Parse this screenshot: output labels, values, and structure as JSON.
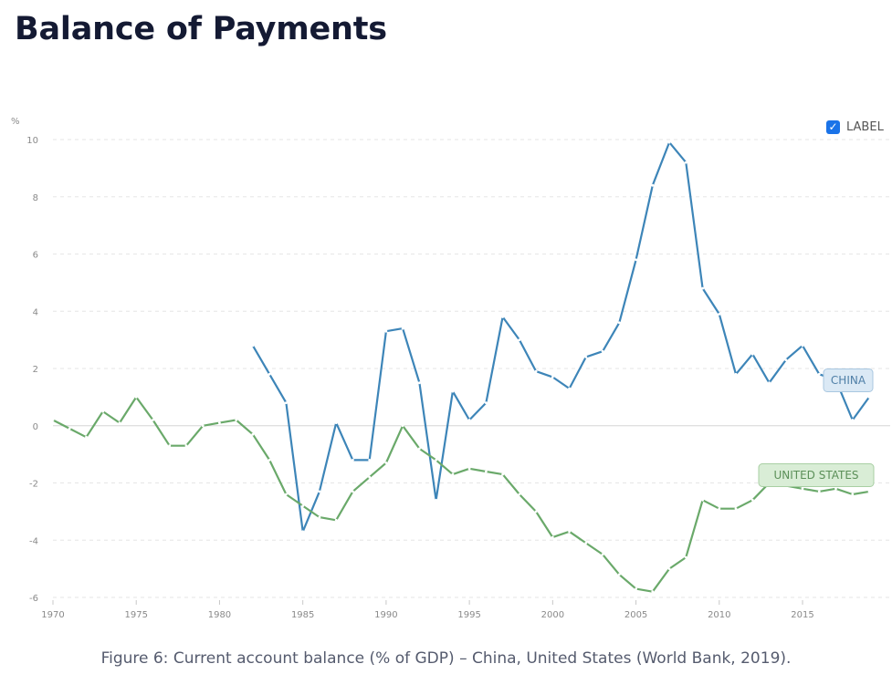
{
  "page": {
    "title": "Balance of Payments",
    "caption": "Figure 6: Current account balance (% of GDP) – China, United States (World Bank, 2019).",
    "label_toggle": {
      "label": "LABEL",
      "checked": true,
      "icon": "check-icon",
      "color": "#1a73e8"
    }
  },
  "chart_data": {
    "type": "line",
    "ylabel": "%",
    "xlim": [
      1970,
      2019
    ],
    "ylim": [
      -6,
      10
    ],
    "x_ticks": [
      1970,
      1975,
      1980,
      1985,
      1990,
      1995,
      2000,
      2005,
      2010,
      2015
    ],
    "y_ticks": [
      -6,
      -4,
      -2,
      0,
      2,
      4,
      6,
      8,
      10
    ],
    "grid": true,
    "series": [
      {
        "name": "CHINA",
        "color": "#3d85b8",
        "x": [
          1982,
          1983,
          1984,
          1985,
          1986,
          1987,
          1988,
          1989,
          1990,
          1991,
          1992,
          1993,
          1994,
          1995,
          1996,
          1997,
          1998,
          1999,
          2000,
          2001,
          2002,
          2003,
          2004,
          2005,
          2006,
          2007,
          2008,
          2009,
          2010,
          2011,
          2012,
          2013,
          2014,
          2015,
          2016,
          2017,
          2018,
          2019
        ],
        "y": [
          2.8,
          1.8,
          0.8,
          -3.7,
          -2.3,
          0.1,
          -1.2,
          -1.2,
          3.3,
          3.4,
          1.5,
          -2.6,
          1.2,
          0.2,
          0.8,
          3.8,
          3.0,
          1.9,
          1.7,
          1.3,
          2.4,
          2.6,
          3.6,
          5.8,
          8.4,
          9.9,
          9.2,
          4.8,
          3.9,
          1.8,
          2.5,
          1.5,
          2.3,
          2.8,
          1.8,
          1.6,
          0.2,
          1.0
        ]
      },
      {
        "name": "UNITED STATES",
        "color": "#6aa96a",
        "x": [
          1970,
          1971,
          1972,
          1973,
          1974,
          1975,
          1976,
          1977,
          1978,
          1979,
          1980,
          1981,
          1982,
          1983,
          1984,
          1985,
          1986,
          1987,
          1988,
          1989,
          1990,
          1991,
          1992,
          1993,
          1994,
          1995,
          1996,
          1997,
          1998,
          1999,
          2000,
          2001,
          2002,
          2003,
          2004,
          2005,
          2006,
          2007,
          2008,
          2009,
          2010,
          2011,
          2012,
          2013,
          2014,
          2015,
          2016,
          2017,
          2018,
          2019
        ],
        "y": [
          0.2,
          -0.1,
          -0.4,
          0.5,
          0.1,
          1.0,
          0.2,
          -0.7,
          -0.7,
          0.0,
          0.1,
          0.2,
          -0.3,
          -1.2,
          -2.4,
          -2.8,
          -3.2,
          -3.3,
          -2.3,
          -1.8,
          -1.3,
          0.0,
          -0.8,
          -1.2,
          -1.7,
          -1.5,
          -1.6,
          -1.7,
          -2.4,
          -3.0,
          -3.9,
          -3.7,
          -4.1,
          -4.5,
          -5.2,
          -5.7,
          -5.8,
          -5.0,
          -4.6,
          -2.6,
          -2.9,
          -2.9,
          -2.6,
          -2.0,
          -2.1,
          -2.2,
          -2.3,
          -2.2,
          -2.4,
          -2.3
        ]
      }
    ],
    "series_labels": [
      {
        "text": "CHINA",
        "fill": "#dbe9f5",
        "stroke": "#a9c7e0",
        "text_color": "#4f7fa7"
      },
      {
        "text": "UNITED STATES",
        "fill": "#d9edd6",
        "stroke": "#a8cfa3",
        "text_color": "#5b8f58"
      }
    ]
  }
}
